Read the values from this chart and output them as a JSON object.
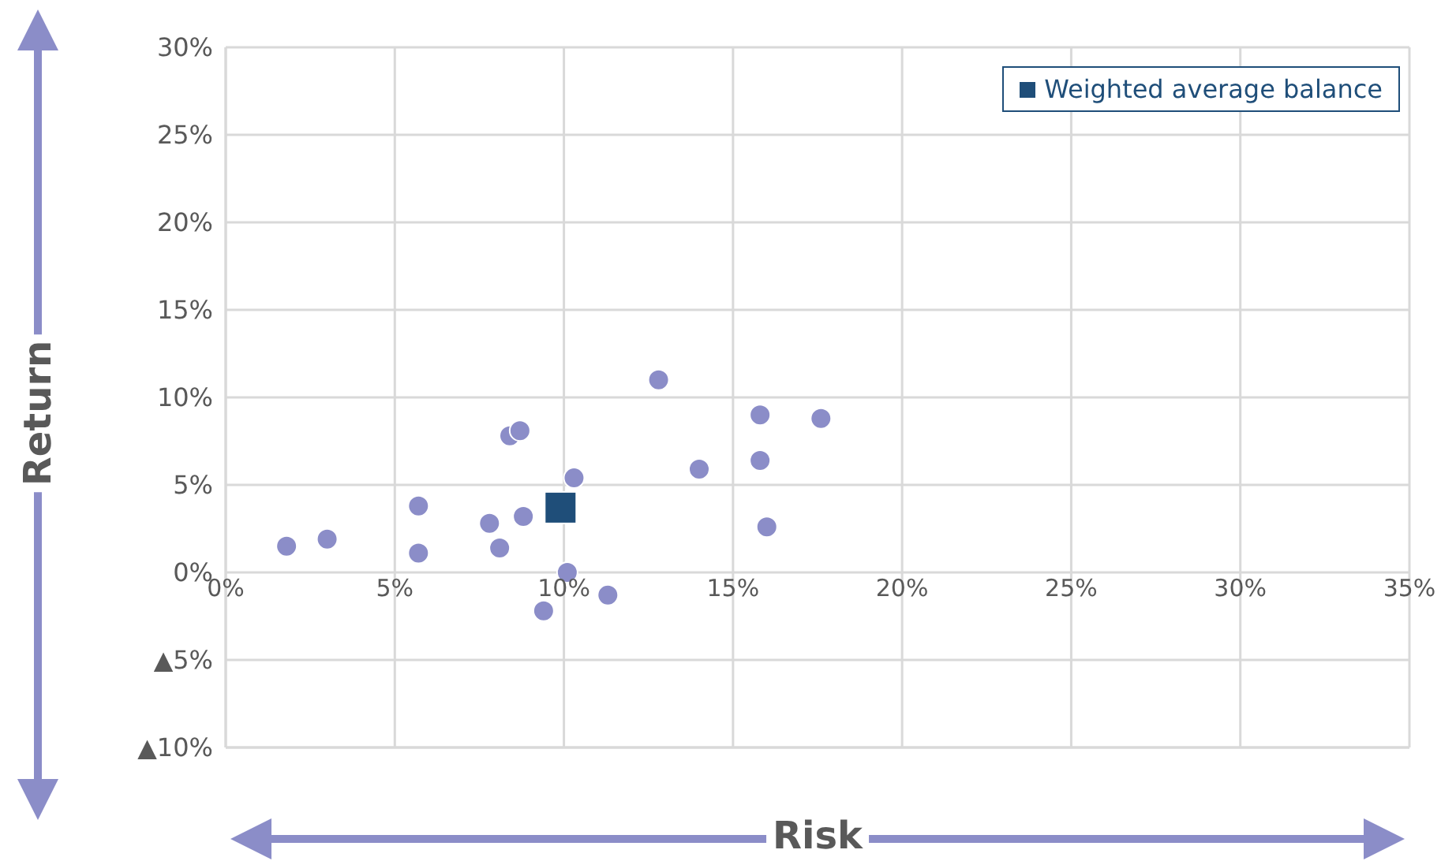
{
  "chart_data": {
    "type": "scatter",
    "xlabel": "Risk",
    "ylabel": "Return",
    "xlim": [
      0,
      35
    ],
    "xticks": [
      {
        "value": 0,
        "label": "0%"
      },
      {
        "value": 5,
        "label": "5%"
      },
      {
        "value": 10,
        "label": "10%"
      },
      {
        "value": 15,
        "label": "15%"
      },
      {
        "value": 20,
        "label": "20%"
      },
      {
        "value": 25,
        "label": "25%"
      },
      {
        "value": 30,
        "label": "30%"
      },
      {
        "value": 35,
        "label": "35%"
      }
    ],
    "ylim": [
      -10,
      30
    ],
    "yticks": [
      {
        "value": -10,
        "label": "▲10%"
      },
      {
        "value": -5,
        "label": "▲5%"
      },
      {
        "value": 0,
        "label": "0%"
      },
      {
        "value": 5,
        "label": "5%"
      },
      {
        "value": 10,
        "label": "10%"
      },
      {
        "value": 15,
        "label": "15%"
      },
      {
        "value": 20,
        "label": "20%"
      },
      {
        "value": 25,
        "label": "25%"
      },
      {
        "value": 30,
        "label": "30%"
      }
    ],
    "grid": true,
    "legend": "top right",
    "series": [
      {
        "color": "#8b8dc8",
        "marker": "circle",
        "x": [
          1.8,
          3.0,
          5.7,
          5.7,
          7.8,
          8.1,
          8.8,
          8.4,
          8.7,
          10.3,
          10.1,
          11.3,
          9.4,
          12.8,
          14.0,
          15.8,
          15.8,
          17.6,
          16.0
        ],
        "values": [
          1.5,
          1.9,
          3.8,
          1.1,
          2.8,
          1.4,
          3.2,
          7.8,
          8.1,
          5.4,
          0,
          -1.3,
          -2.2,
          11.0,
          5.9,
          9.0,
          6.4,
          8.8,
          2.6
        ]
      },
      {
        "name": "Weighted average balance",
        "color": "#1f4e79",
        "marker": "square",
        "x": [
          9.9
        ],
        "values": [
          3.7
        ]
      }
    ]
  }
}
